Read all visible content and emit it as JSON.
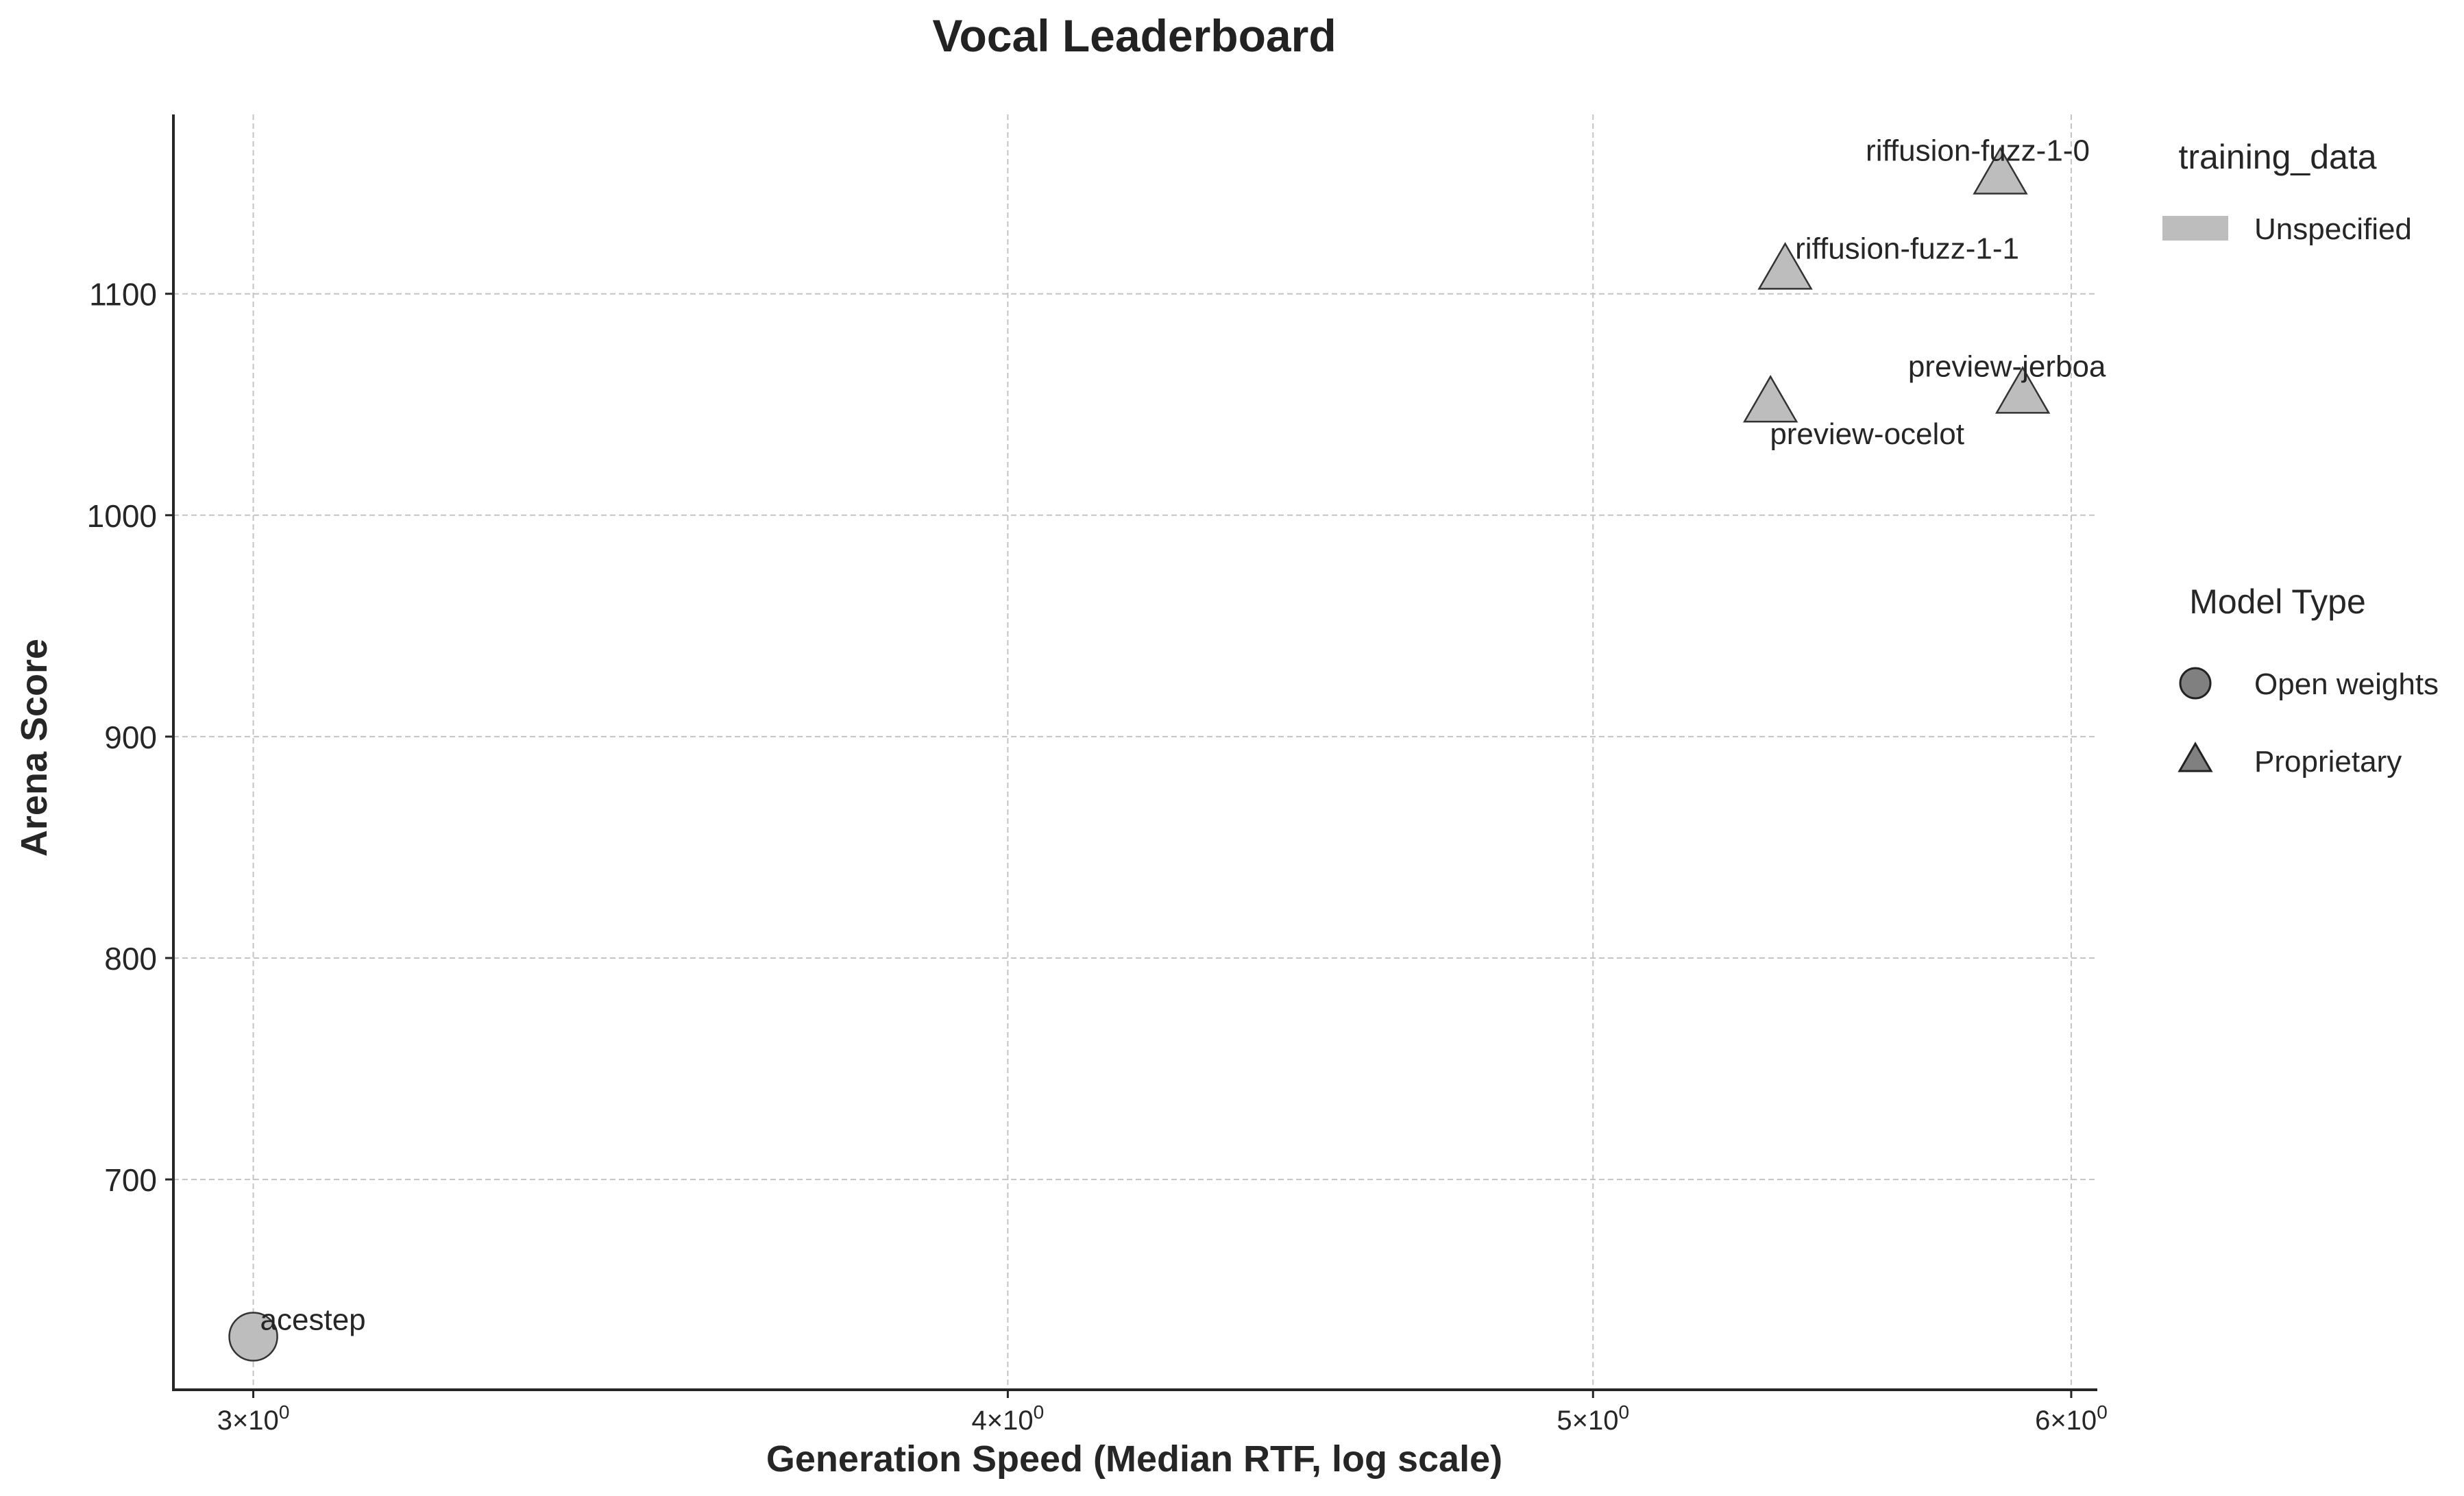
{
  "chart_data": {
    "type": "scatter",
    "title": "Vocal Leaderboard",
    "xlabel": "Generation Speed (Median RTF, log scale)",
    "ylabel": "Arena Score",
    "x_scale": "log",
    "xlim": [
      2.91,
      6.06
    ],
    "ylim": [
      605,
      1181
    ],
    "x_ticks": [
      {
        "value": 3,
        "base": "3",
        "exp": "0"
      },
      {
        "value": 4,
        "base": "4",
        "exp": "0"
      },
      {
        "value": 5,
        "base": "5",
        "exp": "0"
      },
      {
        "value": 6,
        "base": "6",
        "exp": "0"
      }
    ],
    "y_ticks": [
      700,
      800,
      900,
      1000,
      1100
    ],
    "grid": true,
    "points": [
      {
        "label": "acestep",
        "x": 3.0,
        "y": 629,
        "marker": "circle",
        "training_data": "Unspecified",
        "model_type": "Open weights",
        "color": "#bdbdbd"
      },
      {
        "label": "riffusion-fuzz-1-0",
        "x": 5.84,
        "y": 1153,
        "marker": "triangle",
        "training_data": "Unspecified",
        "model_type": "Proprietary",
        "color": "#bdbdbd"
      },
      {
        "label": "riffusion-fuzz-1-1",
        "x": 5.38,
        "y": 1110,
        "marker": "triangle",
        "training_data": "Unspecified",
        "model_type": "Proprietary",
        "color": "#bdbdbd"
      },
      {
        "label": "preview-jerboa",
        "x": 5.89,
        "y": 1054,
        "marker": "triangle",
        "training_data": "Unspecified",
        "model_type": "Proprietary",
        "color": "#bdbdbd"
      },
      {
        "label": "preview-ocelot",
        "x": 5.35,
        "y": 1050,
        "marker": "triangle",
        "training_data": "Unspecified",
        "model_type": "Proprietary",
        "color": "#bdbdbd"
      }
    ],
    "legend": {
      "placement": "right",
      "training_data": {
        "title": "training_data",
        "entries": [
          {
            "label": "Unspecified",
            "color": "#bdbdbd"
          }
        ]
      },
      "model_type": {
        "title": "Model Type",
        "entries": [
          {
            "label": "Open weights",
            "marker": "circle",
            "color": "#808080"
          },
          {
            "label": "Proprietary",
            "marker": "triangle",
            "color": "#808080"
          }
        ]
      }
    }
  }
}
